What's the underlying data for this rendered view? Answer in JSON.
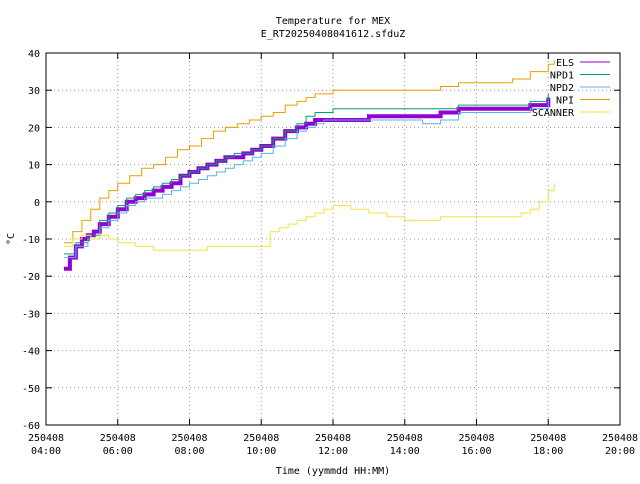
{
  "chart_data": {
    "type": "line",
    "title": "Temperature for MEX",
    "subtitle": "E_RT20250408041612.sfduZ",
    "xlabel": "Time (yymmdd HH:MM)",
    "ylabel": "°C",
    "xlim": [
      "2025-04-08 04:00",
      "2025-04-08 20:00"
    ],
    "ylim": [
      -60,
      40
    ],
    "grid": true,
    "legend_position": "top-right",
    "x_ticks": [
      {
        "date": "250408",
        "time": "04:00",
        "hour": 4
      },
      {
        "date": "250408",
        "time": "06:00",
        "hour": 6
      },
      {
        "date": "250408",
        "time": "08:00",
        "hour": 8
      },
      {
        "date": "250408",
        "time": "10:00",
        "hour": 10
      },
      {
        "date": "250408",
        "time": "12:00",
        "hour": 12
      },
      {
        "date": "250408",
        "time": "14:00",
        "hour": 14
      },
      {
        "date": "250408",
        "time": "16:00",
        "hour": 16
      },
      {
        "date": "250408",
        "time": "18:00",
        "hour": 18
      },
      {
        "date": "250408",
        "time": "20:00",
        "hour": 20
      }
    ],
    "y_ticks": [
      40,
      30,
      20,
      10,
      0,
      -10,
      -20,
      -30,
      -40,
      -50,
      -60
    ],
    "series": [
      {
        "name": "ELS",
        "color": "#9400d3",
        "width": 4,
        "x": [
          "04:30",
          "04:40",
          "04:50",
          "05:00",
          "05:10",
          "05:20",
          "05:30",
          "05:45",
          "06:00",
          "06:15",
          "06:30",
          "06:45",
          "07:00",
          "07:15",
          "07:30",
          "07:45",
          "08:00",
          "08:15",
          "08:30",
          "08:45",
          "09:00",
          "09:15",
          "09:30",
          "09:45",
          "10:00",
          "10:20",
          "10:40",
          "11:00",
          "11:15",
          "11:30",
          "11:45",
          "12:00",
          "12:30",
          "13:00",
          "13:30",
          "14:00",
          "14:30",
          "15:00",
          "15:30",
          "16:00",
          "16:30",
          "17:00",
          "17:30",
          "18:00"
        ],
        "y": [
          -18,
          -15,
          -12,
          -10,
          -9,
          -8,
          -6,
          -4,
          -2,
          0,
          1,
          2,
          3,
          4,
          5,
          7,
          8,
          9,
          10,
          11,
          12,
          12,
          13,
          14,
          15,
          17,
          19,
          20,
          21,
          22,
          22,
          22,
          22,
          23,
          23,
          23,
          23,
          24,
          25,
          25,
          25,
          25,
          26,
          28
        ]
      },
      {
        "name": "NPD1",
        "color": "#009e73",
        "width": 1,
        "x": [
          "04:30",
          "04:50",
          "05:10",
          "05:30",
          "05:45",
          "06:00",
          "06:15",
          "06:30",
          "06:45",
          "07:00",
          "07:15",
          "07:30",
          "07:45",
          "08:00",
          "08:15",
          "08:30",
          "08:45",
          "09:00",
          "09:15",
          "09:30",
          "09:45",
          "10:00",
          "10:20",
          "10:40",
          "11:00",
          "11:15",
          "11:30",
          "11:45",
          "12:00",
          "12:30",
          "13:00",
          "13:30",
          "14:00",
          "14:30",
          "15:00",
          "15:30",
          "16:00",
          "16:30",
          "17:00",
          "17:30",
          "18:00"
        ],
        "y": [
          -14,
          -11,
          -9,
          -5,
          -3,
          -1,
          1,
          2,
          3,
          4,
          5,
          6,
          7,
          8,
          9,
          10,
          11,
          12,
          13,
          13,
          14,
          15,
          17,
          19,
          21,
          23,
          24,
          24,
          25,
          25,
          25,
          25,
          25,
          25,
          25,
          26,
          26,
          26,
          26,
          27,
          29
        ]
      },
      {
        "name": "NPD2",
        "color": "#56b4e9",
        "width": 1,
        "x": [
          "04:30",
          "04:50",
          "05:10",
          "05:30",
          "05:45",
          "06:00",
          "06:15",
          "06:30",
          "06:45",
          "07:00",
          "07:15",
          "07:30",
          "07:45",
          "08:00",
          "08:15",
          "08:30",
          "08:45",
          "09:00",
          "09:15",
          "09:30",
          "09:45",
          "10:00",
          "10:20",
          "10:40",
          "11:00",
          "11:15",
          "11:30",
          "11:45",
          "12:00",
          "12:30",
          "13:00",
          "13:30",
          "14:00",
          "14:30",
          "15:00",
          "15:30",
          "16:00",
          "16:30",
          "17:00",
          "17:30",
          "18:00"
        ],
        "y": [
          -15,
          -12,
          -10,
          -7,
          -5,
          -3,
          -1,
          0,
          1,
          1,
          2,
          3,
          4,
          5,
          6,
          7,
          8,
          9,
          10,
          11,
          12,
          13,
          15,
          17,
          19,
          20,
          21,
          22,
          22,
          22,
          22,
          22,
          22,
          21,
          22,
          24,
          24,
          24,
          24,
          25,
          27
        ]
      },
      {
        "name": "NPI",
        "color": "#e69f00",
        "width": 1,
        "x": [
          "04:30",
          "04:45",
          "05:00",
          "05:15",
          "05:30",
          "05:45",
          "06:00",
          "06:20",
          "06:40",
          "07:00",
          "07:20",
          "07:40",
          "08:00",
          "08:20",
          "08:40",
          "09:00",
          "09:20",
          "09:40",
          "10:00",
          "10:20",
          "10:40",
          "11:00",
          "11:15",
          "11:30",
          "11:45",
          "12:00",
          "12:30",
          "13:00",
          "13:30",
          "14:00",
          "14:30",
          "15:00",
          "15:30",
          "16:00",
          "16:30",
          "17:00",
          "17:30",
          "18:00",
          "18:10"
        ],
        "y": [
          -11,
          -8,
          -5,
          -2,
          1,
          3,
          5,
          7,
          9,
          10,
          12,
          14,
          15,
          17,
          19,
          20,
          21,
          22,
          23,
          24,
          26,
          27,
          28,
          29,
          29,
          30,
          30,
          30,
          30,
          30,
          30,
          31,
          32,
          32,
          32,
          33,
          35,
          37,
          38
        ]
      },
      {
        "name": "SCANNER",
        "color": "#f0e442",
        "width": 1,
        "x": [
          "04:30",
          "04:45",
          "05:00",
          "05:15",
          "05:30",
          "05:45",
          "06:00",
          "06:30",
          "07:00",
          "07:30",
          "08:00",
          "08:30",
          "09:00",
          "09:30",
          "10:00",
          "10:15",
          "10:30",
          "10:45",
          "11:00",
          "11:15",
          "11:30",
          "11:45",
          "12:00",
          "12:30",
          "13:00",
          "13:30",
          "14:00",
          "14:30",
          "15:00",
          "15:30",
          "16:00",
          "16:30",
          "17:00",
          "17:15",
          "17:30",
          "17:45",
          "18:00",
          "18:10"
        ],
        "y": [
          -12,
          -10,
          -9,
          -10,
          -9,
          -10,
          -11,
          -12,
          -13,
          -13,
          -13,
          -12,
          -12,
          -12,
          -12,
          -8,
          -7,
          -6,
          -5,
          -4,
          -3,
          -2,
          -1,
          -2,
          -3,
          -4,
          -5,
          -5,
          -4,
          -4,
          -4,
          -4,
          -4,
          -3,
          -2,
          0,
          3,
          5
        ]
      }
    ]
  }
}
